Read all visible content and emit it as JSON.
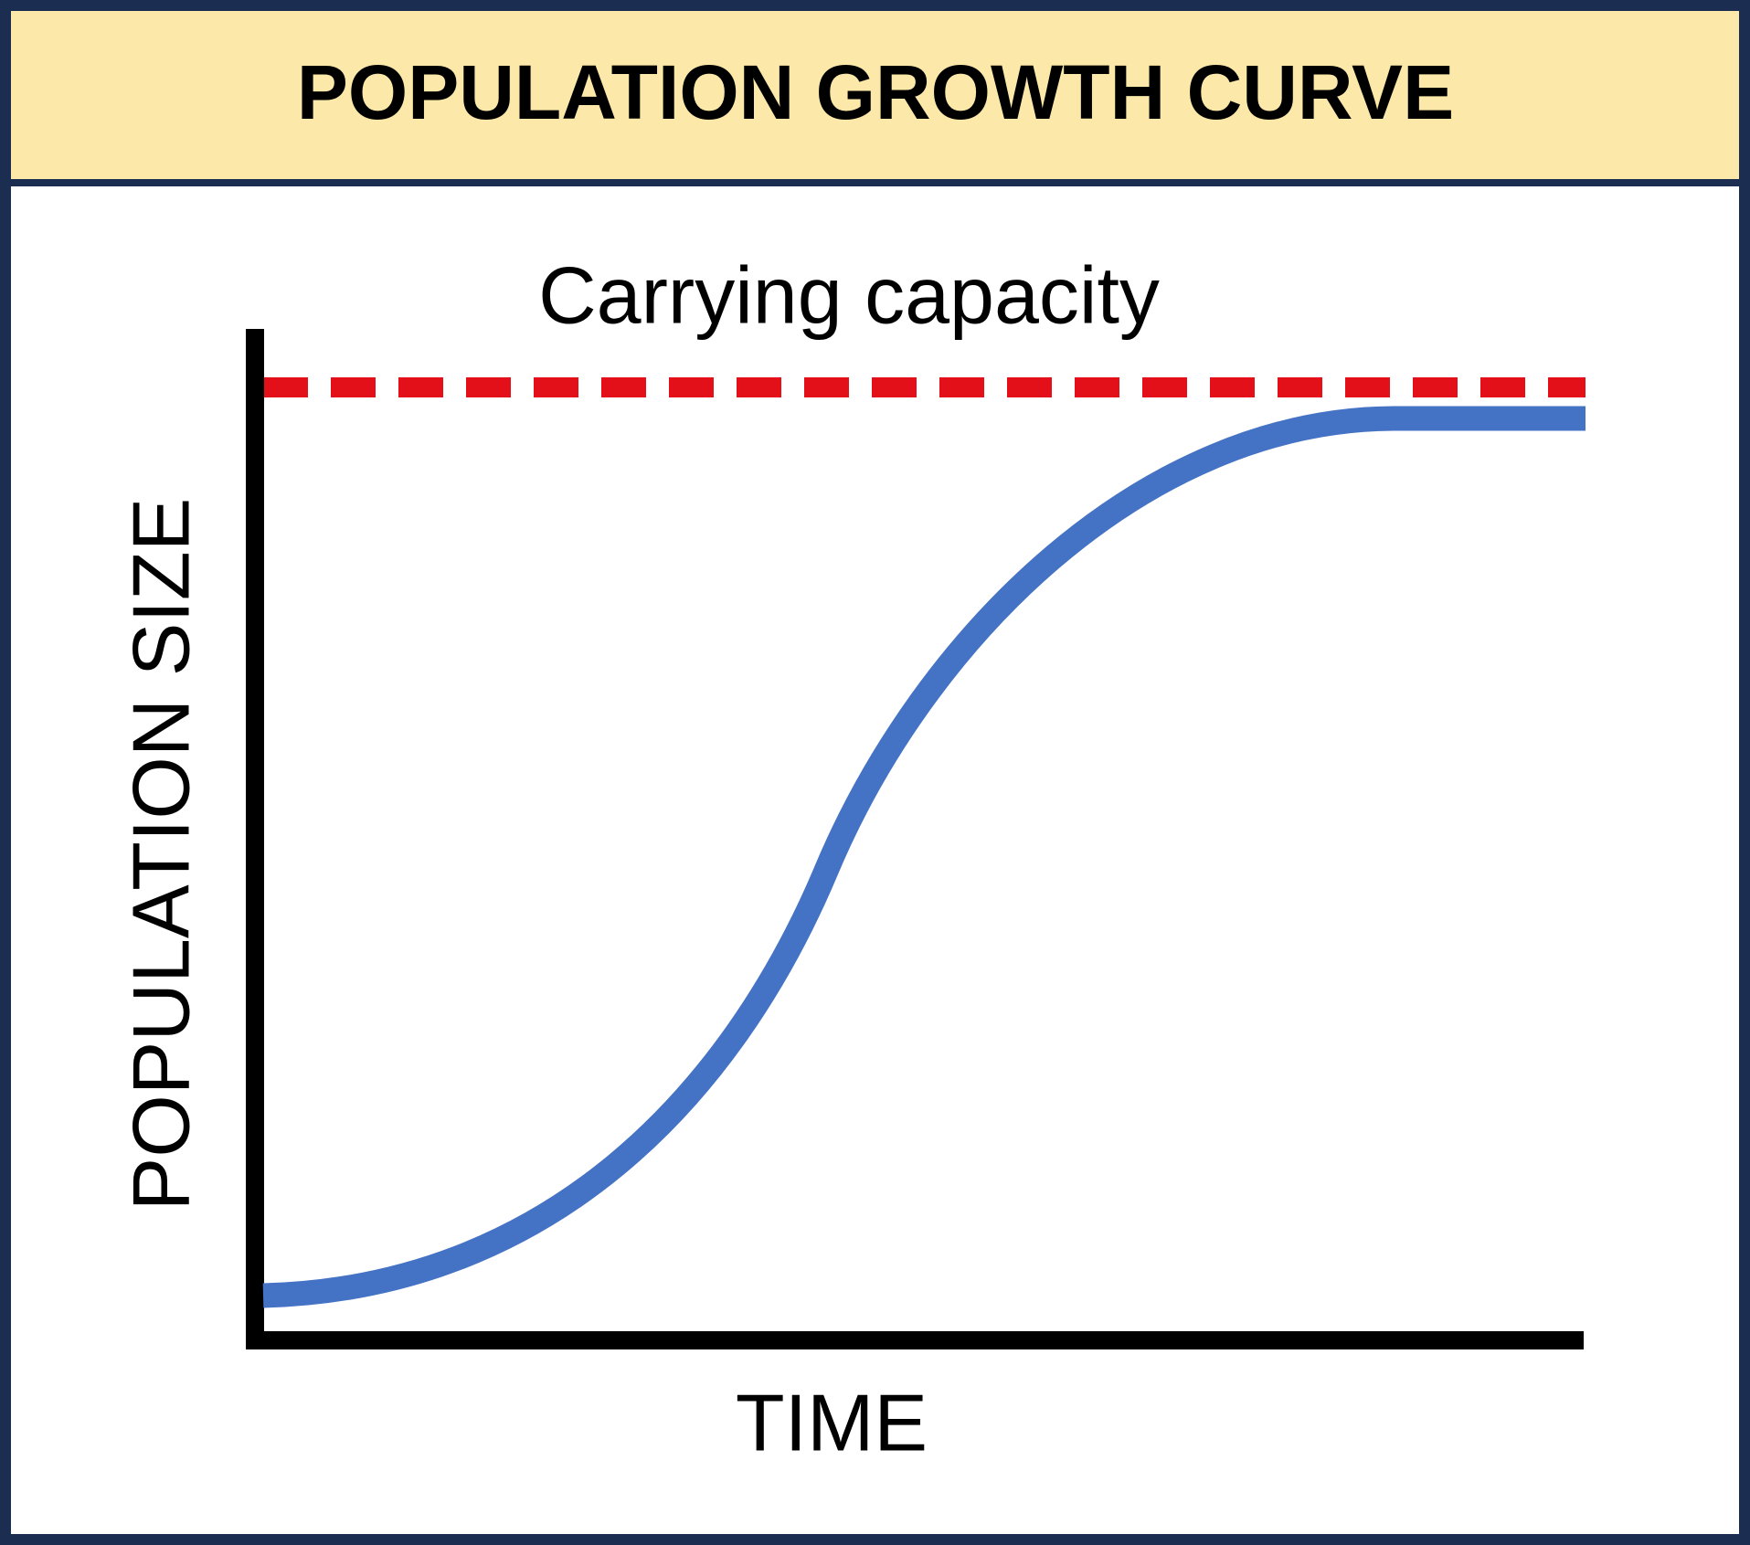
{
  "header": {
    "title": "POPULATION GROWTH CURVE"
  },
  "diagram": {
    "annotation": "Carrying capacity",
    "y_label": "POPULATION SIZE",
    "x_label": "TIME"
  }
}
